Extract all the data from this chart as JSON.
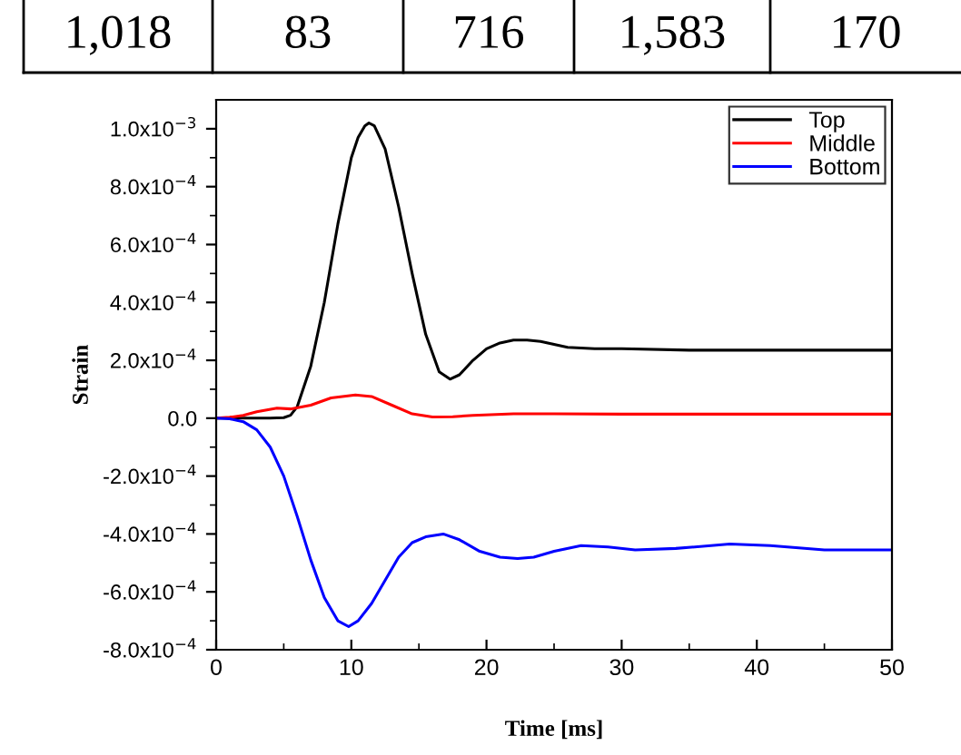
{
  "chart_data": {
    "type": "line",
    "xlabel": "Time [ms]",
    "ylabel": "Strain",
    "annotations": [
      "1,018",
      "83",
      "716",
      "1,583",
      "170"
    ],
    "xlim": [
      0,
      50
    ],
    "xticks": [
      0,
      10,
      20,
      30,
      40,
      50
    ],
    "ylim": [
      -0.0008,
      0.0011
    ],
    "yticks": [
      {
        "value": -0.0008,
        "label": "-8.0x10$^{−4}$"
      },
      {
        "value": -0.0006,
        "label": "-6.0x10$^{−4}$"
      },
      {
        "value": -0.0004,
        "label": "-4.0x10$^{−4}$"
      },
      {
        "value": -0.0002,
        "label": "-2.0x10$^{−4}$"
      },
      {
        "value": 0,
        "label": "0.0"
      },
      {
        "value": 0.0002,
        "label": "2.0x10$^{−4}$"
      },
      {
        "value": 0.0004,
        "label": "4.0x10$^{−4}$"
      },
      {
        "value": 0.0006,
        "label": "6.0x10$^{−4}$"
      },
      {
        "value": 0.0008,
        "label": "8.0x10$^{−4}$"
      },
      {
        "value": 0.001,
        "label": "1.0x10$^{−3}$"
      }
    ],
    "legend": "top right",
    "grid": false,
    "marker": "none",
    "line_style": "solid",
    "series": [
      {
        "name": "Top",
        "color": "#000000",
        "x": [
          0,
          2,
          4,
          5,
          5.5,
          6,
          7,
          8,
          9,
          10,
          10.5,
          11,
          11.3,
          11.7,
          12.5,
          13.5,
          14.5,
          15.5,
          16.5,
          17.3,
          18,
          19,
          20,
          21,
          22,
          23,
          24,
          25,
          26,
          28,
          30,
          35,
          40,
          45,
          50
        ],
        "values": [
          0,
          0,
          0,
          2e-06,
          1e-05,
          4e-05,
          0.00018,
          0.0004,
          0.00067,
          0.0009,
          0.00097,
          0.00101,
          0.00102,
          0.00101,
          0.00093,
          0.00073,
          0.0005,
          0.00029,
          0.00016,
          0.000135,
          0.00015,
          0.0002,
          0.00024,
          0.00026,
          0.00027,
          0.00027,
          0.000265,
          0.000255,
          0.000245,
          0.00024,
          0.00024,
          0.000235,
          0.000235,
          0.000235,
          0.000235
        ]
      },
      {
        "name": "Middle",
        "color": "#ff0000",
        "x": [
          0,
          1,
          2,
          3,
          4.5,
          5.5,
          7,
          8.5,
          10.3,
          11.5,
          13,
          14.5,
          16,
          17.5,
          19,
          22,
          25,
          30,
          40,
          50
        ],
        "values": [
          0,
          3e-06,
          1e-05,
          2.2e-05,
          3.5e-05,
          3.2e-05,
          4.5e-05,
          7e-05,
          8e-05,
          7.5e-05,
          4.5e-05,
          1.5e-05,
          4e-06,
          5e-06,
          1e-05,
          1.5e-05,
          1.5e-05,
          1.4e-05,
          1.4e-05,
          1.4e-05
        ]
      },
      {
        "name": "Bottom",
        "color": "#0000ff",
        "x": [
          0,
          1,
          2,
          3,
          4,
          5,
          6,
          7,
          8,
          9,
          9.8,
          10.5,
          11.5,
          12.5,
          13.5,
          14.5,
          15.5,
          16.8,
          18,
          19.5,
          21,
          22.3,
          23.5,
          25,
          27,
          29,
          31,
          34,
          38,
          41,
          45,
          50
        ],
        "values": [
          0,
          -2e-06,
          -1.2e-05,
          -4e-05,
          -0.0001,
          -0.0002,
          -0.00034,
          -0.00049,
          -0.00062,
          -0.0007,
          -0.00072,
          -0.0007,
          -0.00064,
          -0.00056,
          -0.00048,
          -0.00043,
          -0.00041,
          -0.0004,
          -0.00042,
          -0.00046,
          -0.00048,
          -0.000485,
          -0.00048,
          -0.00046,
          -0.00044,
          -0.000445,
          -0.000455,
          -0.00045,
          -0.000435,
          -0.00044,
          -0.000455,
          -0.000455
        ]
      }
    ]
  }
}
